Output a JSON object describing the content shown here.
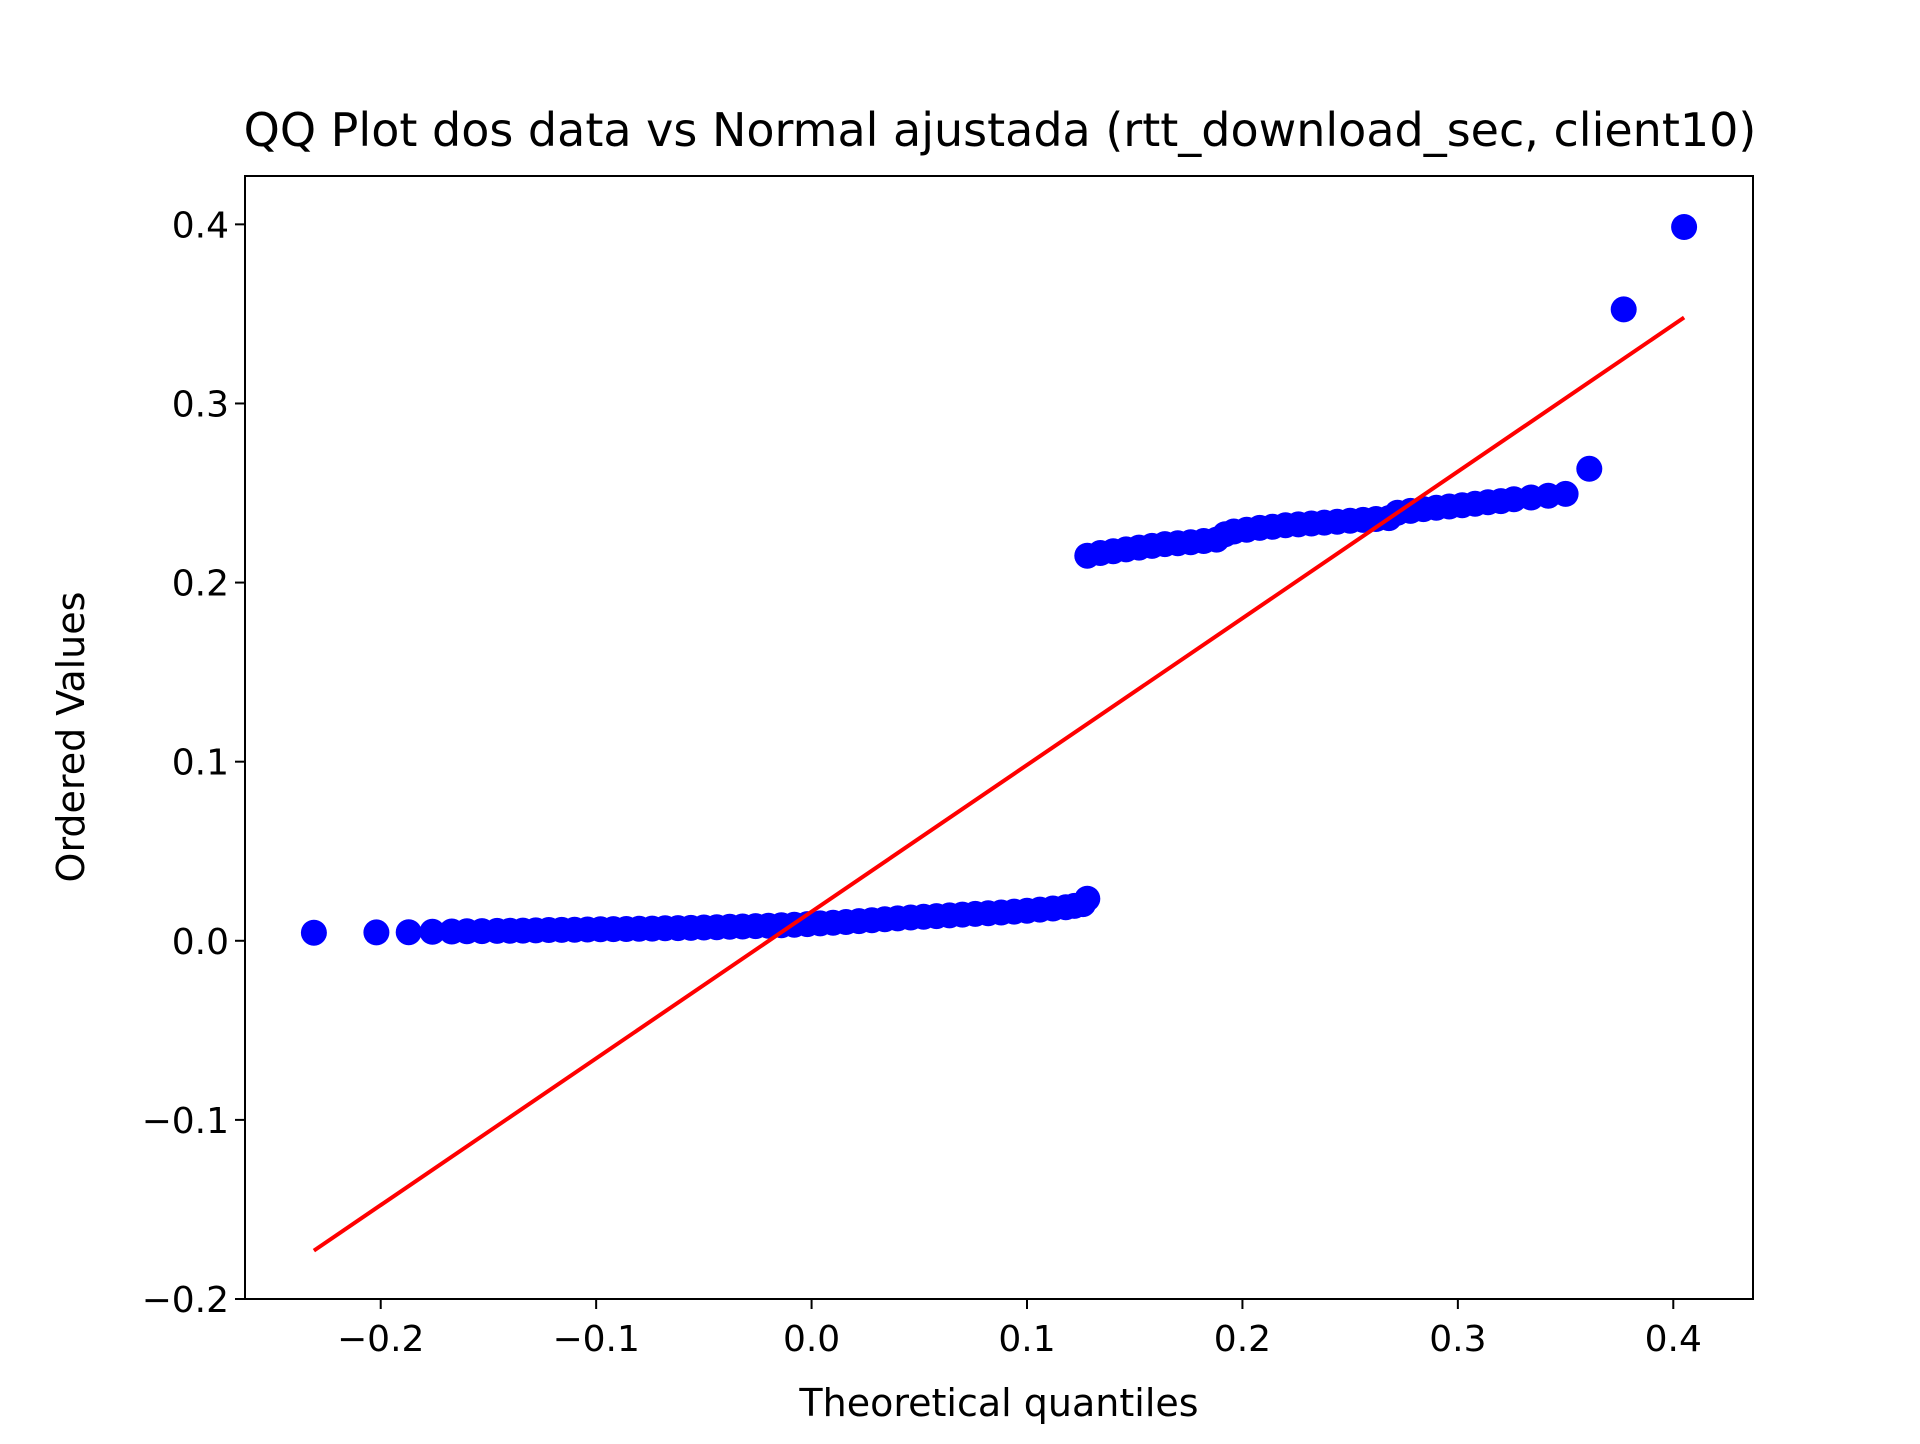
{
  "chart_data": {
    "type": "scatter",
    "title": "QQ Plot dos data vs Normal ajustada (rtt_download_sec, client10)",
    "xlabel": "Theoretical quantiles",
    "ylabel": "Ordered Values",
    "xlim": [
      -0.263,
      0.437
    ],
    "ylim": [
      -0.2,
      0.427
    ],
    "xticks": [
      -0.2,
      -0.1,
      0.0,
      0.1,
      0.2,
      0.3,
      0.4
    ],
    "yticks": [
      -0.2,
      -0.1,
      0.0,
      0.1,
      0.2,
      0.3,
      0.4
    ],
    "xtick_labels": [
      "−0.2",
      "−0.1",
      "0.0",
      "0.1",
      "0.2",
      "0.3",
      "0.4"
    ],
    "ytick_labels": [
      "−0.2",
      "−0.1",
      "0.0",
      "0.1",
      "0.2",
      "0.3",
      "0.4"
    ],
    "grid": false,
    "legend": "none",
    "series": [
      {
        "kind": "points",
        "color": "#0000ff",
        "x": [
          -0.231,
          -0.202,
          -0.187,
          -0.176,
          -0.167,
          -0.16,
          -0.153,
          -0.146,
          -0.14,
          -0.134,
          -0.128,
          -0.122,
          -0.116,
          -0.11,
          -0.104,
          -0.098,
          -0.092,
          -0.086,
          -0.08,
          -0.074,
          -0.068,
          -0.062,
          -0.056,
          -0.05,
          -0.044,
          -0.038,
          -0.032,
          -0.026,
          -0.02,
          -0.014,
          -0.008,
          -0.002,
          0.004,
          0.01,
          0.016,
          0.022,
          0.028,
          0.034,
          0.04,
          0.046,
          0.052,
          0.058,
          0.064,
          0.07,
          0.076,
          0.082,
          0.088,
          0.094,
          0.1,
          0.106,
          0.112,
          0.118,
          0.122,
          0.126,
          0.128,
          0.128,
          0.134,
          0.14,
          0.146,
          0.152,
          0.158,
          0.164,
          0.17,
          0.176,
          0.182,
          0.188,
          0.192,
          0.196,
          0.202,
          0.208,
          0.214,
          0.22,
          0.226,
          0.232,
          0.238,
          0.244,
          0.25,
          0.256,
          0.262,
          0.268,
          0.272,
          0.278,
          0.284,
          0.29,
          0.296,
          0.302,
          0.308,
          0.314,
          0.32,
          0.326,
          0.334,
          0.342,
          0.35,
          0.361,
          0.377,
          0.405
        ],
        "y": [
          0.0045,
          0.0047,
          0.0048,
          0.005,
          0.0052,
          0.0053,
          0.0054,
          0.0055,
          0.0056,
          0.0057,
          0.0058,
          0.006,
          0.0061,
          0.0062,
          0.0063,
          0.0064,
          0.0065,
          0.0066,
          0.0067,
          0.0068,
          0.007,
          0.0071,
          0.0072,
          0.0074,
          0.0076,
          0.0078,
          0.008,
          0.0082,
          0.0084,
          0.0087,
          0.009,
          0.0093,
          0.0097,
          0.0101,
          0.0105,
          0.011,
          0.0115,
          0.012,
          0.0125,
          0.013,
          0.0134,
          0.0138,
          0.0142,
          0.0146,
          0.015,
          0.0154,
          0.0158,
          0.0163,
          0.0168,
          0.0174,
          0.018,
          0.0187,
          0.0195,
          0.0205,
          0.0235,
          0.215,
          0.2165,
          0.2175,
          0.2185,
          0.2195,
          0.2205,
          0.2215,
          0.222,
          0.2225,
          0.2232,
          0.224,
          0.227,
          0.2285,
          0.2295,
          0.2305,
          0.2312,
          0.232,
          0.2325,
          0.233,
          0.2335,
          0.234,
          0.2345,
          0.235,
          0.2355,
          0.236,
          0.239,
          0.24,
          0.241,
          0.2418,
          0.2425,
          0.2432,
          0.244,
          0.2448,
          0.2455,
          0.2465,
          0.2475,
          0.2485,
          0.2495,
          0.2635,
          0.3525,
          0.3985
        ]
      },
      {
        "kind": "line",
        "color": "#ff0000",
        "x": [
          -0.231,
          0.405
        ],
        "y": [
          -0.173,
          0.348
        ]
      }
    ]
  }
}
